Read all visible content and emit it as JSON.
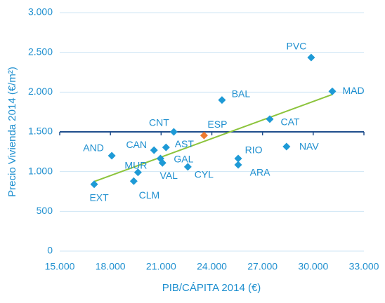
{
  "chart_data": {
    "type": "scatter",
    "xlabel": "PIB/CÁPITA 2014 (€)",
    "ylabel": "Precio Vivienda 2014 (€/m²)",
    "labels": [
      "EXT",
      "CLM",
      "MUR",
      "AND",
      "CAN",
      "GAL",
      "VAL",
      "AST",
      "CNT",
      "CYL",
      "ESP",
      "BAL",
      "RIO",
      "ARA",
      "CAT",
      "NAV",
      "PVC",
      "MAD"
    ],
    "x": [
      17040,
      19380,
      19630,
      18080,
      20580,
      20960,
      21080,
      21290,
      21750,
      22580,
      23540,
      24600,
      25560,
      25560,
      27430,
      28420,
      29880,
      31130
    ],
    "y": [
      840,
      880,
      990,
      1200,
      1270,
      1165,
      1110,
      1305,
      1500,
      1060,
      1455,
      1900,
      1165,
      1085,
      1660,
      1315,
      2435,
      2010
    ],
    "colors": [
      "#1e9ad6",
      "#1e9ad6",
      "#1e9ad6",
      "#1e9ad6",
      "#1e9ad6",
      "#1e9ad6",
      "#1e9ad6",
      "#1e9ad6",
      "#1e9ad6",
      "#1e9ad6",
      "#ee7b30",
      "#1e9ad6",
      "#1e9ad6",
      "#1e9ad6",
      "#1e9ad6",
      "#1e9ad6",
      "#1e9ad6",
      "#1e9ad6"
    ],
    "trendline": {
      "x": [
        17040,
        31130
      ],
      "y": [
        875,
        1970
      ],
      "color": "#8cc43c"
    },
    "x_axis_crossing": 1500,
    "xlim": [
      15000,
      33000
    ],
    "xticks": [
      {
        "value": 15000,
        "label": "15.000"
      },
      {
        "value": 18000,
        "label": "18.000"
      },
      {
        "value": 21000,
        "label": "21.000"
      },
      {
        "value": 24000,
        "label": "24.000"
      },
      {
        "value": 27000,
        "label": "27.000"
      },
      {
        "value": 30000,
        "label": "30.000"
      },
      {
        "value": 33000,
        "label": "33.000"
      }
    ],
    "ylim": [
      0,
      3000
    ],
    "yticks": [
      0,
      500,
      {
        "value": 1000,
        "label": "1.000"
      },
      {
        "value": 1500,
        "label": "1.500"
      },
      {
        "value": 2000,
        "label": "2.000"
      },
      {
        "value": 2500,
        "label": "2.500"
      },
      {
        "value": 3000,
        "label": "3.000"
      }
    ],
    "grid": true
  }
}
